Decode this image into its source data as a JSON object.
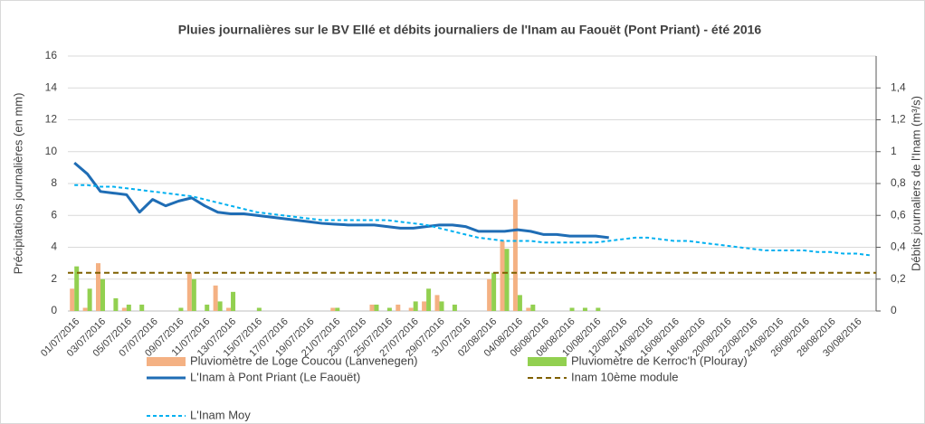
{
  "chart_data": {
    "type": "combo",
    "title": "Pluies journalières sur le BV Ellé et débits journaliers de l'Inam au Faouët (Pont Priant) - été 2016",
    "y_label": "Précipitations journalières (en mm)",
    "y2_label": "Débits journaliers de l'Inam (m³/s)",
    "categories": [
      "01/07/2016",
      null,
      "03/07/2016",
      null,
      "05/07/2016",
      null,
      "07/07/2016",
      null,
      "09/07/2016",
      null,
      "11/07/2016",
      null,
      "13/07/2016",
      null,
      "15/07/2016",
      null,
      "17/07/2016",
      null,
      "19/07/2016",
      null,
      "21/07/2016",
      null,
      "23/07/2016",
      null,
      "25/07/2016",
      null,
      "27/07/2016",
      null,
      "29/07/2016",
      null,
      "31/07/2016",
      null,
      "02/08/2016",
      null,
      "04/08/2016",
      null,
      "06/08/2016",
      null,
      "08/08/2016",
      null,
      "10/08/2016",
      null,
      "12/08/2016",
      null,
      "14/08/2016",
      null,
      "16/08/2016",
      null,
      "18/08/2016",
      null,
      "20/08/2016",
      null,
      "22/08/2016",
      null,
      "24/08/2016",
      null,
      "26/08/2016",
      null,
      "28/08/2016",
      null,
      "30/08/2016",
      null
    ],
    "ylim": [
      0,
      16
    ],
    "yticks": [
      0,
      2,
      4,
      6,
      8,
      10,
      12,
      14,
      16
    ],
    "y2lim": [
      0,
      1.6
    ],
    "y2ticks": [
      0,
      {
        "value": 0.2,
        "label": "0,2"
      },
      {
        "value": 0.4,
        "label": "0,4"
      },
      {
        "value": 0.6,
        "label": "0,6"
      },
      {
        "value": 0.8,
        "label": "0,8"
      },
      {
        "value": 1,
        "label": "1"
      },
      {
        "value": 1.2,
        "label": "1,2"
      },
      {
        "value": 1.4,
        "label": "1,4"
      }
    ],
    "grid": true,
    "series": [
      {
        "name": "Pluviomètre de Loge Coucou (Lanvenegen)",
        "type": "bar",
        "color": "#f4b183",
        "values": [
          1.4,
          0.2,
          3.0,
          0,
          0.2,
          0,
          0,
          0,
          0,
          2.4,
          0,
          1.6,
          0.2,
          0,
          0,
          0,
          0,
          0,
          0,
          0,
          0.2,
          0,
          0,
          0.4,
          0,
          0.4,
          0.2,
          0.6,
          1.0,
          0,
          0,
          0,
          2.0,
          4.4,
          7.0,
          0.2,
          0,
          0,
          0,
          0,
          0,
          0,
          0,
          0,
          0,
          0,
          0,
          0,
          0,
          0,
          0,
          0,
          0,
          0,
          0,
          0,
          0,
          0,
          0,
          0,
          0,
          0
        ]
      },
      {
        "name": "Pluviomètre de Kerroc'h (Plouray)",
        "type": "bar",
        "color": "#92d050",
        "values": [
          2.8,
          1.4,
          2.0,
          0.8,
          0.4,
          0.4,
          0,
          0,
          0.2,
          2.0,
          0.4,
          0.6,
          1.2,
          0,
          0.2,
          0,
          0,
          0,
          0,
          0,
          0.2,
          0,
          0,
          0.4,
          0.2,
          0,
          0.6,
          1.4,
          0.6,
          0.4,
          0,
          0,
          2.4,
          3.9,
          1.0,
          0.4,
          0,
          0,
          0.2,
          0.2,
          0.2,
          0,
          0,
          0,
          0,
          0,
          0,
          0,
          0,
          0,
          0,
          0,
          0,
          0,
          0,
          0,
          0,
          0,
          0,
          0,
          0,
          0
        ]
      },
      {
        "name": "L'Inam à Pont Priant (Le Faouët)",
        "type": "line",
        "axis": "y2",
        "color": "#1f6db5",
        "values": [
          0.93,
          0.86,
          0.75,
          0.74,
          0.73,
          0.62,
          0.7,
          0.66,
          0.69,
          0.71,
          0.66,
          0.62,
          0.61,
          0.61,
          0.6,
          0.59,
          0.58,
          0.57,
          0.56,
          0.55,
          0.545,
          0.54,
          0.54,
          0.54,
          0.53,
          0.52,
          0.52,
          0.53,
          0.54,
          0.54,
          0.53,
          0.5,
          0.5,
          0.5,
          0.51,
          0.5,
          0.48,
          0.48,
          0.47,
          0.47,
          0.47,
          0.46,
          null,
          null,
          null,
          null,
          null,
          null,
          null,
          null,
          null,
          null,
          null,
          null,
          null,
          null,
          null,
          null,
          null,
          null,
          null,
          null
        ]
      },
      {
        "name": "Inam 10ème module",
        "type": "hline",
        "axis": "y2",
        "color": "#7f6000",
        "value": 0.24
      },
      {
        "name": "L'Inam Moy",
        "type": "dashed-line",
        "axis": "y2",
        "color": "#00b0f0",
        "values": [
          0.79,
          0.79,
          0.78,
          0.78,
          0.77,
          0.76,
          0.75,
          0.74,
          0.73,
          0.72,
          0.7,
          0.68,
          0.66,
          0.64,
          0.62,
          0.61,
          0.6,
          0.59,
          0.58,
          0.57,
          0.57,
          0.57,
          0.57,
          0.57,
          0.57,
          0.56,
          0.55,
          0.54,
          0.52,
          0.5,
          0.48,
          0.46,
          0.45,
          0.44,
          0.44,
          0.44,
          0.43,
          0.43,
          0.43,
          0.43,
          0.43,
          0.44,
          0.45,
          0.46,
          0.46,
          0.45,
          0.44,
          0.44,
          0.43,
          0.42,
          0.41,
          0.4,
          0.39,
          0.38,
          0.38,
          0.38,
          0.38,
          0.37,
          0.37,
          0.36,
          0.36,
          0.35
        ]
      }
    ]
  }
}
